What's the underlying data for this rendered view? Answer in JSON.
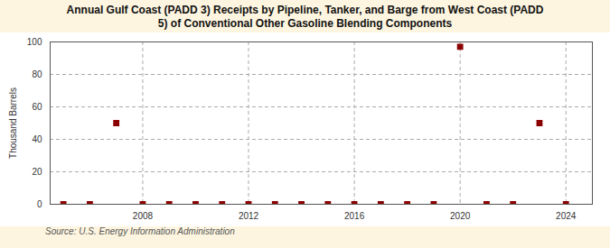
{
  "chart_data": {
    "type": "scatter",
    "title": "Annual Gulf Coast (PADD 3) Receipts by Pipeline, Tanker, and Barge from West Coast (PADD\n5) of Conventional Other Gasoline Blending Components",
    "ylabel": "Thousand Barrels",
    "annotations": [
      "Source: U.S. Energy Information Administration"
    ],
    "x": [
      2005,
      2006,
      2007,
      2008,
      2009,
      2010,
      2011,
      2012,
      2013,
      2014,
      2015,
      2016,
      2017,
      2018,
      2019,
      2020,
      2021,
      2022,
      2023,
      2024
    ],
    "values": [
      0,
      0,
      50,
      0,
      0,
      0,
      0,
      0,
      0,
      0,
      0,
      0,
      0,
      0,
      0,
      97,
      0,
      0,
      50,
      0
    ],
    "color": "#8b0000",
    "marker": "square",
    "xlim": [
      2004.5,
      2025.0
    ],
    "ylim": [
      0,
      100
    ],
    "xticks": [
      2008,
      2012,
      2016,
      2020,
      2024
    ],
    "yticks": [
      0,
      20,
      40,
      60,
      80,
      100
    ],
    "grid": true
  }
}
